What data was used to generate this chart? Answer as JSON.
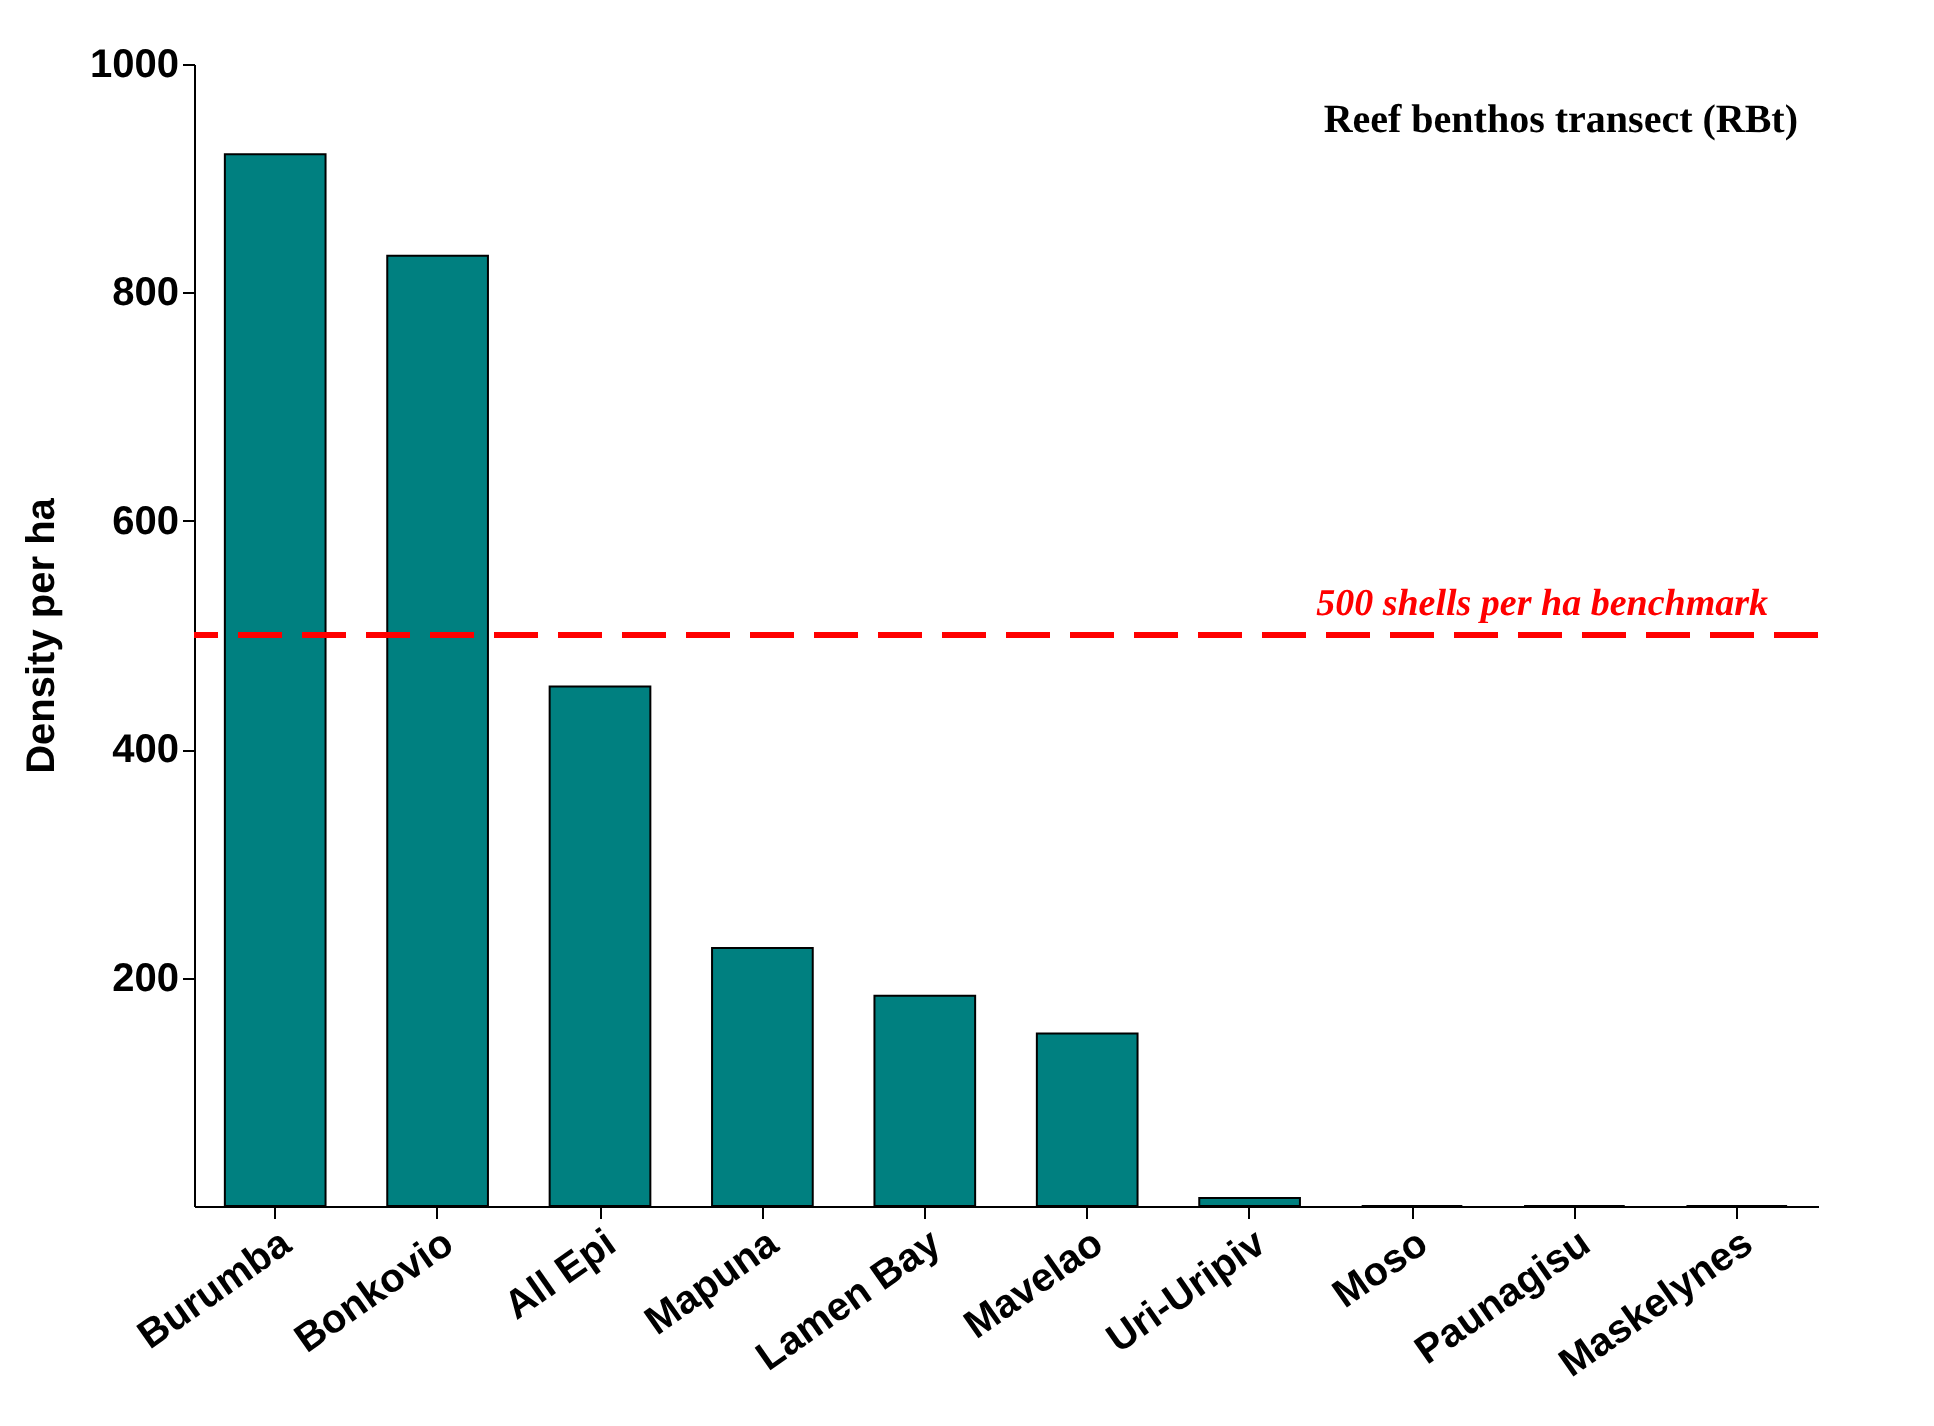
{
  "chart_data": {
    "type": "bar",
    "ylabel": "Density per ha",
    "categories": [
      "Burumba",
      "Bonkovio",
      "All Epi",
      "Mapuna",
      "Lamen Bay",
      "Mavelao",
      "Uri-Uripiv",
      "Moso",
      "Paunagisu",
      "Maskelynes"
    ],
    "values": [
      921,
      832,
      455,
      226,
      184,
      151,
      7,
      0,
      0,
      0
    ],
    "color": "#008080",
    "ylim": [
      0,
      1000
    ],
    "yticks": [
      200,
      400,
      600,
      800,
      1000
    ],
    "grid": false,
    "ref_lines": [
      {
        "axis": "y",
        "value": 500,
        "label": "500 shells per ha benchmark",
        "color": "#ff0000",
        "line_style": "dashed"
      }
    ],
    "annotations": [
      "Reef benthos transect (RBt)"
    ]
  }
}
